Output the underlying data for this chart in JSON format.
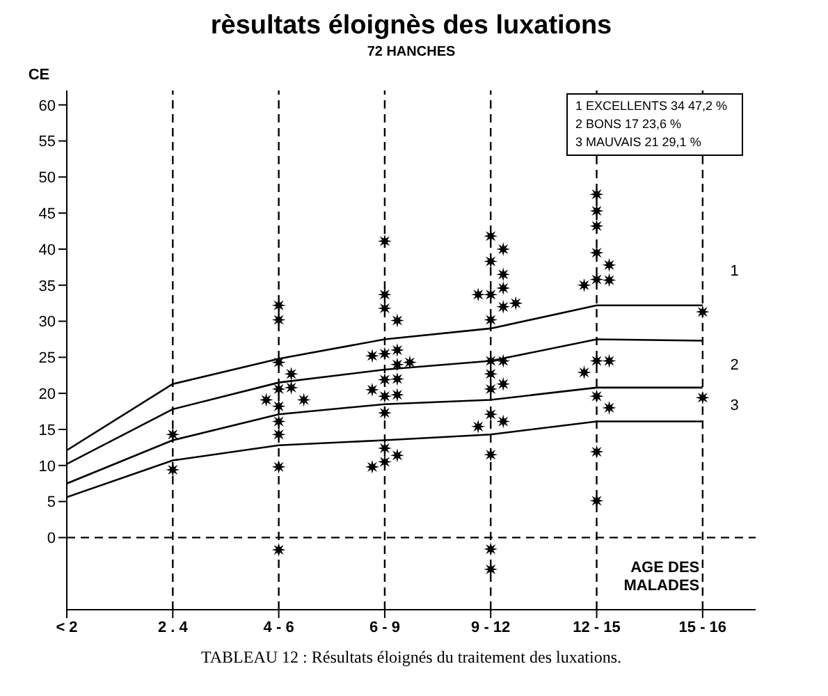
{
  "chart_data": {
    "type": "scatter",
    "title": "rèsultats éloignès des luxations",
    "subtitle": "72 HANCHES",
    "ylabel": "CE",
    "xlabel": "AGE DES MALADES",
    "categories": [
      "< 2",
      "2 . 4",
      "4 - 6",
      "6 - 9",
      "9 - 12",
      "12 - 15",
      "15 - 16"
    ],
    "ylim": [
      -10,
      62
    ],
    "yticks": [
      0,
      5,
      10,
      15,
      20,
      25,
      30,
      35,
      40,
      45,
      50,
      55,
      60
    ],
    "grid": false,
    "legend": false,
    "marker": "star",
    "series": [
      {
        "type": "line",
        "color": "#000000",
        "marker": "none",
        "values": [
          12.1,
          21.3,
          24.8,
          27.5,
          29,
          32.2,
          32.2
        ]
      },
      {
        "type": "line",
        "color": "#000000",
        "marker": "none",
        "values": [
          10.2,
          17.8,
          21.5,
          23.3,
          24.5,
          27.5,
          27.3
        ]
      },
      {
        "type": "line",
        "color": "#000000",
        "marker": "none",
        "values": [
          7.5,
          13.5,
          17.1,
          18.5,
          19.1,
          20.8,
          20.8
        ]
      },
      {
        "type": "line",
        "color": "#000000",
        "marker": "none",
        "values": [
          5.6,
          10.7,
          12.8,
          13.5,
          14.3,
          16.1,
          16.1
        ]
      },
      {
        "color": "#000000",
        "x": [
          "2 . 4",
          "2 . 4",
          "4 - 6",
          "4 - 6",
          "4 - 6",
          "4 - 6",
          "4 - 6",
          "4 - 6",
          "4 - 6",
          "4 - 6",
          "4 - 6",
          "4 - 6",
          "4 - 6",
          "4 - 6",
          "4 - 6",
          "6 - 9",
          "6 - 9",
          "6 - 9",
          "6 - 9",
          "6 - 9",
          "6 - 9",
          "6 - 9",
          "6 - 9",
          "6 - 9",
          "6 - 9",
          "6 - 9",
          "6 - 9",
          "6 - 9",
          "6 - 9",
          "6 - 9",
          "6 - 9",
          "6 - 9",
          "6 - 9",
          "6 - 9",
          "9 - 12",
          "9 - 12",
          "9 - 12",
          "9 - 12",
          "9 - 12",
          "9 - 12",
          "9 - 12",
          "9 - 12",
          "9 - 12",
          "9 - 12",
          "9 - 12",
          "9 - 12",
          "9 - 12",
          "9 - 12",
          "9 - 12",
          "9 - 12",
          "9 - 12",
          "9 - 12",
          "9 - 12",
          "9 - 12",
          "9 - 12",
          "12 - 15",
          "12 - 15",
          "12 - 15",
          "12 - 15",
          "12 - 15",
          "12 - 15",
          "12 - 15",
          "12 - 15",
          "12 - 15",
          "12 - 15",
          "12 - 15",
          "12 - 15",
          "12 - 15",
          "12 - 15",
          "12 - 15",
          "15 - 16",
          "15 - 16"
        ],
        "values": [
          14.3,
          9.4,
          32.2,
          30.2,
          24.3,
          22.7,
          20.6,
          20.8,
          19.1,
          19.1,
          18.2,
          16.1,
          14.3,
          9.8,
          -1.7,
          41.1,
          33.7,
          31.8,
          30.1,
          25.5,
          26,
          25.2,
          24,
          24.3,
          21.9,
          22,
          19.6,
          19.8,
          20.5,
          17.3,
          12.4,
          10.5,
          11.4,
          9.8,
          41.8,
          40,
          38.3,
          36.5,
          33.7,
          34.6,
          33.7,
          32,
          32.5,
          30.2,
          24.5,
          24.5,
          22.7,
          21.3,
          20.6,
          17.1,
          16.1,
          15.4,
          11.5,
          -1.6,
          -4.4,
          47.6,
          45.3,
          43.2,
          39.5,
          37.8,
          35.8,
          35.7,
          35,
          24.5,
          24.5,
          22.9,
          19.6,
          18,
          11.9,
          5.1,
          31.3,
          19.4
        ]
      }
    ],
    "ref_lines": [
      {
        "axis": "x",
        "value": "2 . 4",
        "line_style": "dashed"
      },
      {
        "axis": "x",
        "value": "4 - 6",
        "line_style": "dashed"
      },
      {
        "axis": "x",
        "value": "6 - 9",
        "line_style": "dashed"
      },
      {
        "axis": "x",
        "value": "9 - 12",
        "line_style": "dashed"
      },
      {
        "axis": "x",
        "value": "12 - 15",
        "line_style": "dashed"
      },
      {
        "axis": "x",
        "value": "15 - 16",
        "line_style": "dashed"
      },
      {
        "axis": "y",
        "value": 0,
        "line_style": "dashed"
      }
    ],
    "annotations": [
      "1 EXCELLENTS 34 47,2 %",
      "2 BONS 17 23,6 %",
      "3 MAUVAIS 21 29,1 %",
      "TABLEAU 12 : Résultats éloignés du traitement des luxations.",
      "1",
      "2",
      "3"
    ]
  }
}
